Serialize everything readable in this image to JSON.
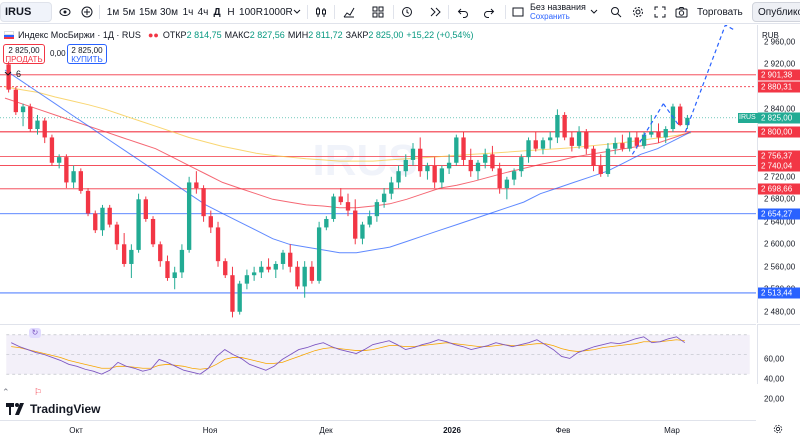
{
  "toolbar": {
    "symbol": "IRUS",
    "intervals": [
      "1м",
      "5м",
      "15м",
      "30м",
      "1ч",
      "4ч",
      "Д",
      "Н",
      "100R",
      "1000R"
    ],
    "active_interval": "Д",
    "layout_name": "Без названия",
    "layout_sub": "Сохранить",
    "trade_label": "Торговать",
    "publish_label": "Опубликовать"
  },
  "legend": {
    "title": "Индекс МосБиржи · 1Д · RUS",
    "open_label": "ОТКР",
    "open": "2 814,75",
    "high_label": "МАКС",
    "high": "2 827,56",
    "low_label": "МИН",
    "low": "2 811,72",
    "close_label": "ЗАКР",
    "close": "2 825,00",
    "change": "+15,22 (+0,54%)"
  },
  "trade": {
    "sell_price": "2 825,00",
    "sell_label": "ПРОДАТЬ",
    "spread": "0,00",
    "buy_price": "2 825,00",
    "buy_label": "КУПИТЬ"
  },
  "indicators_count": "6",
  "watermark": "IRUS",
  "currency": "RUB",
  "price_ticks": [
    "2 960,00",
    "2 920,00",
    "2 840,00",
    "2 760,00",
    "2 720,00",
    "2 680,00",
    "2 640,00",
    "2 600,00",
    "2 560,00",
    "2 520,00",
    "2 480,00"
  ],
  "price_tags": [
    {
      "text": "2 901,38",
      "color": "#f23645",
      "value": 2901.38
    },
    {
      "text": "2 880,31",
      "color": "#f23645",
      "value": 2880.31
    },
    {
      "text": "2 825,00",
      "color": "#22ab94",
      "value": 2825.0
    },
    {
      "text": "2 800,00",
      "color": "#f23645",
      "value": 2800.0
    },
    {
      "text": "2 756,37",
      "color": "#f23645",
      "value": 2756.37
    },
    {
      "text": "2 740,04",
      "color": "#f23645",
      "value": 2740.04
    },
    {
      "text": "2 698,66",
      "color": "#f23645",
      "value": 2698.66
    },
    {
      "text": "2 654,27",
      "color": "#2962ff",
      "value": 2654.27
    },
    {
      "text": "2 513,44",
      "color": "#2962ff",
      "value": 2513.44
    }
  ],
  "irus_tag": "IRUS",
  "rsi_ticks": [
    "60,00",
    "40,00",
    "20,00"
  ],
  "time_ticks": [
    "Окт",
    "Ноя",
    "Дек",
    "2026",
    "Фев",
    "Мар"
  ],
  "brand": "TradingView",
  "colors": {
    "up": "#22ab94",
    "down": "#f23645",
    "ma_blue": "#2962ff",
    "ma_red": "#f23645",
    "ma_yellow": "#f7c843",
    "rsi": "#7e57c2",
    "rsi_signal": "#f7a600",
    "accent": "#2962ff"
  },
  "chart_data": {
    "type": "candlestick",
    "price_range": [
      2460,
      2990
    ],
    "candles": [
      [
        2920,
        2925,
        2870,
        2875
      ],
      [
        2875,
        2880,
        2830,
        2835
      ],
      [
        2835,
        2850,
        2810,
        2845
      ],
      [
        2845,
        2850,
        2800,
        2805
      ],
      [
        2805,
        2830,
        2795,
        2820
      ],
      [
        2820,
        2825,
        2780,
        2790
      ],
      [
        2790,
        2795,
        2740,
        2745
      ],
      [
        2745,
        2760,
        2735,
        2755
      ],
      [
        2755,
        2760,
        2700,
        2710
      ],
      [
        2710,
        2740,
        2700,
        2730
      ],
      [
        2730,
        2735,
        2690,
        2695
      ],
      [
        2695,
        2700,
        2650,
        2655
      ],
      [
        2655,
        2660,
        2620,
        2625
      ],
      [
        2625,
        2670,
        2615,
        2665
      ],
      [
        2665,
        2670,
        2630,
        2635
      ],
      [
        2635,
        2640,
        2590,
        2600
      ],
      [
        2600,
        2620,
        2560,
        2565
      ],
      [
        2565,
        2600,
        2540,
        2590
      ],
      [
        2590,
        2690,
        2585,
        2680
      ],
      [
        2680,
        2685,
        2640,
        2645
      ],
      [
        2645,
        2650,
        2595,
        2600
      ],
      [
        2600,
        2605,
        2560,
        2570
      ],
      [
        2570,
        2580,
        2535,
        2540
      ],
      [
        2540,
        2560,
        2520,
        2550
      ],
      [
        2550,
        2600,
        2540,
        2590
      ],
      [
        2590,
        2720,
        2585,
        2710
      ],
      [
        2710,
        2730,
        2690,
        2700
      ],
      [
        2700,
        2705,
        2640,
        2650
      ],
      [
        2650,
        2660,
        2620,
        2630
      ],
      [
        2630,
        2640,
        2560,
        2570
      ],
      [
        2570,
        2575,
        2540,
        2545
      ],
      [
        2545,
        2560,
        2470,
        2480
      ],
      [
        2480,
        2535,
        2475,
        2530
      ],
      [
        2530,
        2555,
        2520,
        2545
      ],
      [
        2545,
        2560,
        2535,
        2550
      ],
      [
        2550,
        2570,
        2540,
        2560
      ],
      [
        2560,
        2575,
        2550,
        2555
      ],
      [
        2555,
        2570,
        2540,
        2565
      ],
      [
        2565,
        2590,
        2555,
        2585
      ],
      [
        2585,
        2600,
        2550,
        2560
      ],
      [
        2560,
        2570,
        2520,
        2525
      ],
      [
        2525,
        2570,
        2505,
        2560
      ],
      [
        2560,
        2570,
        2530,
        2535
      ],
      [
        2535,
        2640,
        2530,
        2630
      ],
      [
        2630,
        2650,
        2625,
        2645
      ],
      [
        2645,
        2690,
        2640,
        2685
      ],
      [
        2685,
        2700,
        2670,
        2675
      ],
      [
        2675,
        2690,
        2650,
        2660
      ],
      [
        2660,
        2680,
        2600,
        2610
      ],
      [
        2610,
        2640,
        2600,
        2635
      ],
      [
        2635,
        2660,
        2630,
        2650
      ],
      [
        2650,
        2680,
        2640,
        2675
      ],
      [
        2675,
        2700,
        2665,
        2690
      ],
      [
        2690,
        2720,
        2680,
        2710
      ],
      [
        2710,
        2740,
        2700,
        2730
      ],
      [
        2730,
        2760,
        2720,
        2750
      ],
      [
        2750,
        2780,
        2740,
        2770
      ],
      [
        2770,
        2790,
        2720,
        2730
      ],
      [
        2730,
        2745,
        2715,
        2740
      ],
      [
        2740,
        2755,
        2700,
        2710
      ],
      [
        2710,
        2740,
        2700,
        2735
      ],
      [
        2735,
        2760,
        2725,
        2745
      ],
      [
        2745,
        2795,
        2740,
        2790
      ],
      [
        2790,
        2800,
        2740,
        2750
      ],
      [
        2750,
        2770,
        2720,
        2730
      ],
      [
        2730,
        2750,
        2715,
        2745
      ],
      [
        2745,
        2770,
        2735,
        2760
      ],
      [
        2760,
        2775,
        2730,
        2735
      ],
      [
        2735,
        2745,
        2690,
        2700
      ],
      [
        2700,
        2720,
        2680,
        2715
      ],
      [
        2715,
        2735,
        2705,
        2730
      ],
      [
        2730,
        2760,
        2720,
        2755
      ],
      [
        2755,
        2790,
        2745,
        2785
      ],
      [
        2785,
        2800,
        2765,
        2770
      ],
      [
        2770,
        2790,
        2760,
        2785
      ],
      [
        2785,
        2800,
        2770,
        2790
      ],
      [
        2790,
        2840,
        2780,
        2830
      ],
      [
        2830,
        2835,
        2785,
        2790
      ],
      [
        2790,
        2800,
        2765,
        2775
      ],
      [
        2775,
        2810,
        2770,
        2800
      ],
      [
        2800,
        2805,
        2760,
        2770
      ],
      [
        2770,
        2775,
        2730,
        2740
      ],
      [
        2740,
        2760,
        2720,
        2725
      ],
      [
        2725,
        2780,
        2720,
        2770
      ],
      [
        2770,
        2790,
        2760,
        2780
      ],
      [
        2780,
        2795,
        2765,
        2770
      ],
      [
        2770,
        2800,
        2765,
        2790
      ],
      [
        2790,
        2800,
        2770,
        2775
      ],
      [
        2775,
        2800,
        2770,
        2795
      ],
      [
        2795,
        2830,
        2790,
        2800
      ],
      [
        2800,
        2815,
        2780,
        2790
      ],
      [
        2790,
        2810,
        2780,
        2805
      ],
      [
        2805,
        2850,
        2800,
        2845
      ],
      [
        2845,
        2850,
        2810,
        2812
      ],
      [
        2812,
        2830,
        2805,
        2825
      ]
    ],
    "ma_blue": [
      2910,
      2890,
      2870,
      2850,
      2830,
      2810,
      2790,
      2770,
      2750,
      2730,
      2710,
      2690,
      2670,
      2655,
      2640,
      2625,
      2610,
      2600,
      2595,
      2590,
      2585,
      2585,
      2590,
      2595,
      2605,
      2615,
      2625,
      2635,
      2645,
      2655,
      2665,
      2675,
      2690,
      2700,
      2710,
      2720,
      2730,
      2745,
      2760,
      2770,
      2785,
      2800
    ],
    "ma_red": [
      2860,
      2850,
      2840,
      2830,
      2820,
      2810,
      2800,
      2790,
      2780,
      2770,
      2755,
      2740,
      2725,
      2710,
      2700,
      2690,
      2680,
      2675,
      2670,
      2668,
      2665,
      2665,
      2668,
      2672,
      2680,
      2690,
      2700,
      2705,
      2712,
      2720,
      2728,
      2735,
      2742,
      2748,
      2755,
      2760,
      2765,
      2770,
      2775,
      2780,
      2790,
      2800
    ],
    "ma_yellow": [
      2880,
      2875,
      2870,
      2862,
      2855,
      2848,
      2840,
      2830,
      2820,
      2810,
      2800,
      2790,
      2782,
      2774,
      2768,
      2762,
      2758,
      2755,
      2752,
      2750,
      2748,
      2748,
      2748,
      2750,
      2752,
      2754,
      2756,
      2758,
      2760,
      2762,
      2764,
      2766,
      2768,
      2770,
      2772,
      2775,
      2778,
      2781,
      2785,
      2789,
      2793,
      2798
    ],
    "rsi": [
      62,
      58,
      55,
      52,
      50,
      47,
      44,
      40,
      38,
      35,
      33,
      30,
      34,
      42,
      38,
      36,
      33,
      35,
      45,
      42,
      38,
      34,
      32,
      30,
      36,
      48,
      55,
      50,
      46,
      40,
      37,
      34,
      38,
      45,
      50,
      55,
      57,
      60,
      62,
      58,
      55,
      53,
      51,
      55,
      60,
      62,
      64,
      60,
      55,
      57,
      60,
      62,
      65,
      63,
      60,
      58,
      55,
      57,
      59,
      62,
      60,
      58,
      60,
      62,
      65,
      60,
      55,
      48,
      46,
      52,
      55,
      58,
      60,
      62,
      61,
      63,
      66,
      68,
      62,
      63,
      66,
      68,
      62
    ],
    "rsi_signal": [
      58,
      57,
      55,
      53,
      51,
      49,
      47,
      44,
      42,
      40,
      38,
      36,
      36,
      38,
      38,
      37,
      36,
      36,
      39,
      40,
      39,
      38,
      36,
      35,
      36,
      40,
      45,
      47,
      47,
      45,
      43,
      41,
      41,
      42,
      45,
      48,
      51,
      54,
      56,
      57,
      56,
      55,
      54,
      54,
      55,
      57,
      59,
      59,
      58,
      58,
      59,
      60,
      61,
      62,
      61,
      60,
      59,
      58,
      58,
      59,
      60,
      59,
      59,
      60,
      61,
      61,
      59,
      56,
      54,
      53,
      54,
      55,
      57,
      58,
      59,
      60,
      61,
      63,
      63,
      63,
      64,
      65,
      64
    ],
    "rsi_range": [
      20,
      80
    ],
    "levels": [
      2901.38,
      2880.31,
      2800.0,
      2756.37,
      2740.04,
      2698.66,
      2654.27,
      2513.44
    ]
  }
}
